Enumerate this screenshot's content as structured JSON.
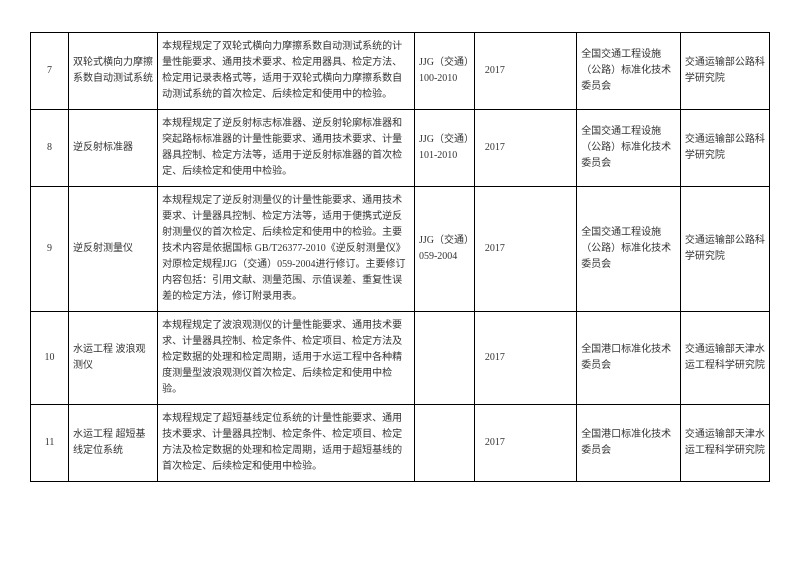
{
  "rows": [
    {
      "num": "7",
      "name": "双轮式横向力摩擦系数自动测试系统",
      "desc": "本规程规定了双轮式横向力摩擦系数自动测试系统的计量性能要求、通用技术要求、检定用器具、检定方法、检定用记录表格式等，适用于双轮式横向力摩擦系数自动测试系统的首次检定、后续检定和使用中的检验。",
      "code": "JJG（交通）100-2010",
      "year": "2017",
      "org": "全国交通工程设施（公路）标准化技术委员会",
      "inst": "交通运输部公路科学研究院"
    },
    {
      "num": "8",
      "name": "逆反射标准器",
      "desc": "本规程规定了逆反射标志标准器、逆反射轮廓标准器和突起路标标准器的计量性能要求、通用技术要求、计量器具控制、检定方法等，适用于逆反射标准器的首次检定、后续检定和使用中检验。",
      "code": "JJG（交通）101-2010",
      "year": "2017",
      "org": "全国交通工程设施（公路）标准化技术委员会",
      "inst": "交通运输部公路科学研究院"
    },
    {
      "num": "9",
      "name": "逆反射测量仪",
      "desc": "本规程规定了逆反射测量仪的计量性能要求、通用技术要求、计量器具控制、检定方法等，适用于便携式逆反射测量仪的首次检定、后续检定和使用中的检验。主要技术内容是依据国标 GB/T26377-2010《逆反射测量仪》对原检定规程JJG（交通）059-2004进行修订。主要修订内容包括：引用文献、测量范围、示值误差、重复性误差的检定方法，修订附录用表。",
      "code": "JJG（交通）059-2004",
      "year": "2017",
      "org": "全国交通工程设施（公路）标准化技术委员会",
      "inst": "交通运输部公路科学研究院"
    },
    {
      "num": "10",
      "name": "水运工程 波浪观测仪",
      "desc": "本规程规定了波浪观测仪的计量性能要求、通用技术要求、计量器具控制、检定条件、检定项目、检定方法及检定数据的处理和检定周期，适用于水运工程中各种精度测量型波浪观测仪首次检定、后续检定和使用中检验。",
      "code": "",
      "year": "2017",
      "org": "全国港口标准化技术委员会",
      "inst": "交通运输部天津水运工程科学研究院"
    },
    {
      "num": "11",
      "name": "水运工程 超短基线定位系统",
      "desc": "本规程规定了超短基线定位系统的计量性能要求、通用技术要求、计量器具控制、检定条件、检定项目、检定方法及检定数据的处理和检定周期，适用于超短基线的首次检定、后续检定和使用中检验。",
      "code": "",
      "year": "2017",
      "org": "全国港口标准化技术委员会",
      "inst": "交通运输部天津水运工程科学研究院"
    }
  ]
}
